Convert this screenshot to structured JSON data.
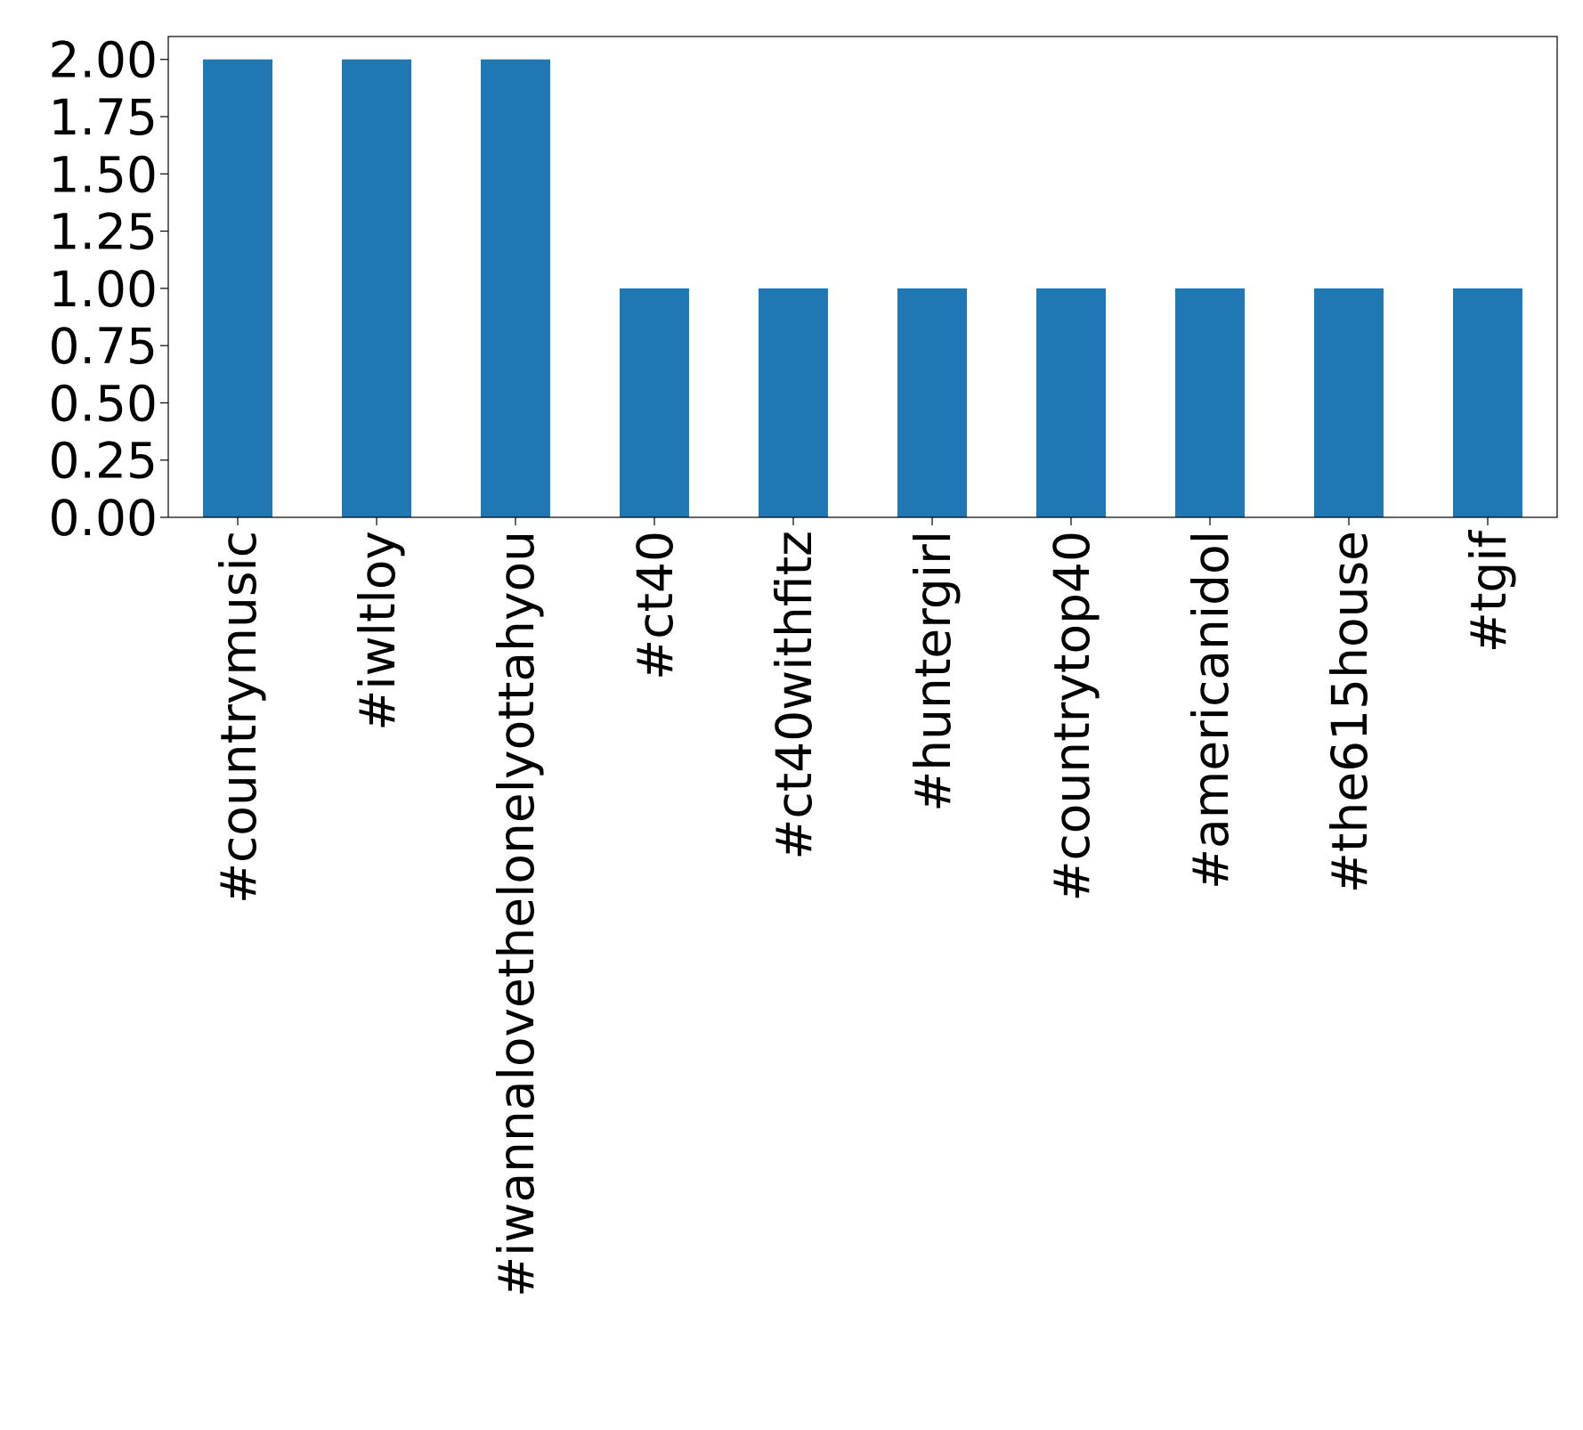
{
  "chart_data": {
    "type": "bar",
    "categories": [
      "#countrymusic",
      "#iwltloy",
      "#iwannalovethelonelyottahyou",
      "#ct40",
      "#ct40withfitz",
      "#huntergirl",
      "#countrytop40",
      "#americanidol",
      "#the615house",
      "#tgif"
    ],
    "values": [
      2,
      2,
      2,
      1,
      1,
      1,
      1,
      1,
      1,
      1
    ],
    "color": "#1f77b4",
    "ylim": [
      0,
      2.1
    ],
    "yticks": [
      {
        "value": 0,
        "label": "0.00"
      },
      {
        "value": 0.25,
        "label": "0.25"
      },
      {
        "value": 0.5,
        "label": "0.50"
      },
      {
        "value": 0.75,
        "label": "0.75"
      },
      {
        "value": 1,
        "label": "1.00"
      },
      {
        "value": 1.25,
        "label": "1.25"
      },
      {
        "value": 1.5,
        "label": "1.50"
      },
      {
        "value": 1.75,
        "label": "1.75"
      },
      {
        "value": 2,
        "label": "2.00"
      }
    ],
    "grid": false
  }
}
